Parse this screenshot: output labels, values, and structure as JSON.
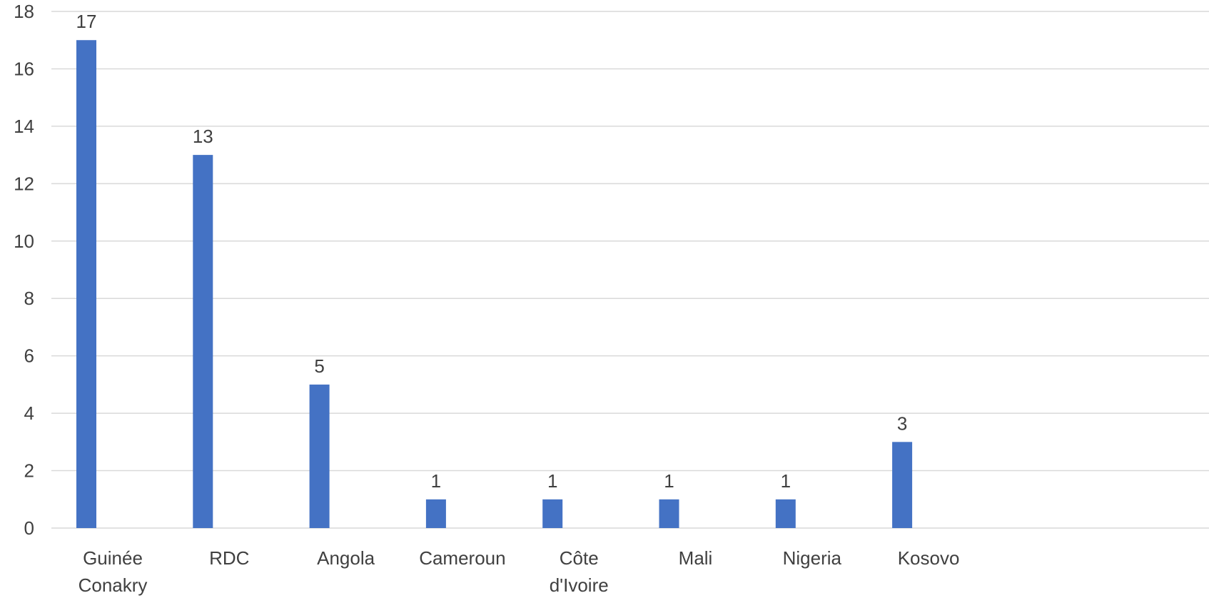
{
  "chart_data": {
    "type": "bar",
    "categories": [
      [
        "Guinée",
        "Conakry"
      ],
      [
        "RDC"
      ],
      [
        "Angola"
      ],
      [
        "Cameroun"
      ],
      [
        "Côte",
        "d'Ivoire"
      ],
      [
        "Mali"
      ],
      [
        "Nigeria"
      ],
      [
        "Kosovo"
      ]
    ],
    "values": [
      17,
      13,
      5,
      1,
      1,
      1,
      1,
      3
    ],
    "y_ticks": [
      "0",
      "2",
      "4",
      "6",
      "8",
      "10",
      "12",
      "14",
      "16",
      "18"
    ],
    "ylim": [
      0,
      18
    ],
    "grid": true,
    "legend": "none",
    "bar_color": "#4472c4",
    "gridline_color": "#d9d9d9",
    "label_color": "#404040",
    "background": "#ffffff"
  }
}
